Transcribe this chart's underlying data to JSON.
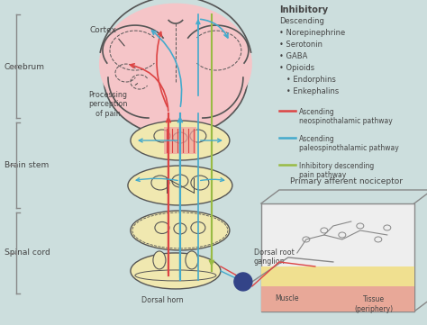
{
  "bg_color": "#ccdedd",
  "brain_color": "#f5c5c8",
  "brainstem_color": "#f0e8b0",
  "tissue_bg_color": "#e8e8e8",
  "muscle_color": "#e8a898",
  "nerve_color": "#f0e090",
  "inhibitory_title": "Inhibitory",
  "inhibitory_items": [
    "Descending",
    "• Norepinephrine",
    "• Serotonin",
    "• GABA",
    "• Opioids",
    "   • Endorphins",
    "   • Enkephalins"
  ],
  "legend_items": [
    {
      "color": "#dd4444",
      "label": "Ascending\nneospinothalamic pathway"
    },
    {
      "color": "#44aacc",
      "label": "Ascending\npaleospinothalamic pathway"
    },
    {
      "color": "#99bb44",
      "label": "Inhibitory descending\npain pathway"
    }
  ],
  "labels": {
    "cerebrum": "Cerebrum",
    "brain_stem": "Brain stem",
    "spinal_cord": "Spinal cord",
    "cortex": "Cortex",
    "processing": "Processing\nperception\nof pain",
    "dorsal_root": "Dorsal root\nganglion",
    "dorsal_horn": "Dorsal horn",
    "primary_afferent": "Primary afferent nociceptor",
    "muscle": "Muscle",
    "tissue": "Tissue\n(periphery)"
  },
  "red_color": "#dd4444",
  "blue_color": "#44aacc",
  "green_color": "#99bb44",
  "dark_color": "#444444",
  "edge_color": "#555555"
}
